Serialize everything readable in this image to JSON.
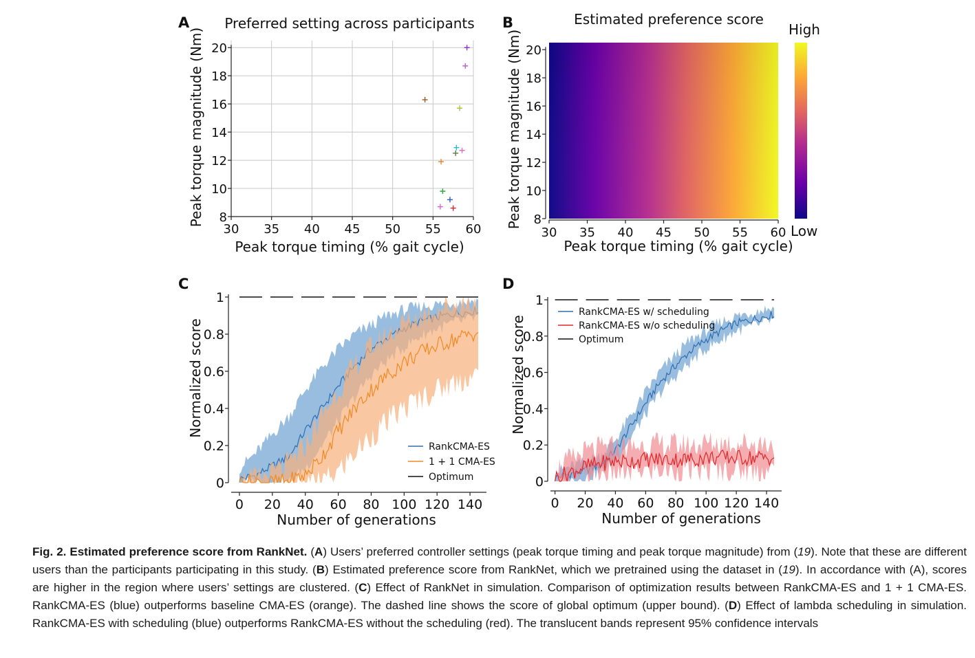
{
  "chart_data": [
    {
      "panel": "A",
      "type": "scatter",
      "title": "Preferred setting across participants",
      "xlabel": "Peak torque timing (% gait cycle)",
      "ylabel": "Peak torque magnitude (Nm)",
      "xlim": [
        30,
        60
      ],
      "ylim": [
        8,
        20.5
      ],
      "xticks": [
        30,
        35,
        40,
        45,
        50,
        55,
        60
      ],
      "yticks": [
        8,
        10,
        12,
        14,
        16,
        18,
        20
      ],
      "grid": true,
      "points": [
        {
          "x": 59.2,
          "y": 20.0,
          "color": "#9b2fc9"
        },
        {
          "x": 59.0,
          "y": 18.7,
          "color": "#c060d0"
        },
        {
          "x": 54.0,
          "y": 16.3,
          "color": "#9a5a2a"
        },
        {
          "x": 58.3,
          "y": 15.7,
          "color": "#a8c23a"
        },
        {
          "x": 57.9,
          "y": 12.9,
          "color": "#2ab8d8"
        },
        {
          "x": 58.6,
          "y": 12.7,
          "color": "#e070c0"
        },
        {
          "x": 57.8,
          "y": 12.5,
          "color": "#5a7a3a"
        },
        {
          "x": 56.0,
          "y": 11.9,
          "color": "#e08a3a"
        },
        {
          "x": 56.2,
          "y": 9.8,
          "color": "#2aa83a"
        },
        {
          "x": 57.1,
          "y": 9.2,
          "color": "#2a5ac8"
        },
        {
          "x": 55.9,
          "y": 8.7,
          "color": "#e060d8"
        },
        {
          "x": 57.5,
          "y": 8.6,
          "color": "#d82a2a"
        }
      ]
    },
    {
      "panel": "B",
      "type": "heatmap",
      "title": "Estimated preference score",
      "xlabel": "Peak torque timing (% gait cycle)",
      "ylabel": "Peak torque magnitude (Nm)",
      "xlim": [
        30,
        60
      ],
      "ylim": [
        8,
        20.5
      ],
      "xticks": [
        30,
        35,
        40,
        45,
        50,
        55,
        60
      ],
      "yticks": [
        8,
        10,
        12,
        14,
        16,
        18,
        20
      ],
      "colorbar_high": "High",
      "colorbar_low": "Low",
      "colormap": [
        "#0d0887",
        "#6a00a8",
        "#b12a90",
        "#e16462",
        "#fca636",
        "#f0f921"
      ]
    },
    {
      "panel": "C",
      "type": "line",
      "xlabel": "Number of generations",
      "ylabel": "Normalized score",
      "xlim": [
        -5,
        150
      ],
      "ylim": [
        0,
        1.0
      ],
      "xticks": [
        0,
        20,
        40,
        60,
        80,
        100,
        120,
        140
      ],
      "yticks": [
        0.0,
        0.2,
        0.4,
        0.6,
        0.8,
        1.0
      ],
      "legend": "lower-right",
      "series": [
        {
          "name": "RankCMA-ES",
          "color": "#2f6eb0",
          "band_color": "#6ea1d2",
          "x": [
            0,
            10,
            20,
            30,
            40,
            50,
            60,
            70,
            80,
            90,
            100,
            110,
            120,
            130,
            140,
            145
          ],
          "mean": [
            0.02,
            0.04,
            0.09,
            0.14,
            0.28,
            0.4,
            0.52,
            0.63,
            0.72,
            0.78,
            0.83,
            0.87,
            0.89,
            0.91,
            0.92,
            0.93
          ],
          "lower": [
            0.0,
            0.0,
            0.0,
            0.0,
            0.08,
            0.2,
            0.33,
            0.46,
            0.58,
            0.66,
            0.73,
            0.79,
            0.83,
            0.86,
            0.88,
            0.89
          ],
          "upper": [
            0.08,
            0.16,
            0.26,
            0.36,
            0.5,
            0.62,
            0.72,
            0.8,
            0.85,
            0.9,
            0.93,
            0.95,
            0.96,
            0.97,
            0.98,
            0.98
          ]
        },
        {
          "name": "1 + 1 CMA-ES",
          "color": "#f08a24",
          "band_color": "#f6b07a",
          "x": [
            0,
            10,
            20,
            30,
            40,
            50,
            60,
            70,
            80,
            90,
            100,
            110,
            120,
            130,
            140,
            145
          ],
          "mean": [
            0.0,
            0.0,
            0.0,
            0.01,
            0.04,
            0.14,
            0.28,
            0.4,
            0.5,
            0.58,
            0.65,
            0.7,
            0.74,
            0.77,
            0.8,
            0.81
          ],
          "lower": [
            0.0,
            0.0,
            0.0,
            0.0,
            0.0,
            0.0,
            0.06,
            0.16,
            0.25,
            0.33,
            0.4,
            0.46,
            0.5,
            0.54,
            0.57,
            0.58
          ],
          "upper": [
            0.01,
            0.02,
            0.05,
            0.1,
            0.2,
            0.36,
            0.5,
            0.63,
            0.73,
            0.8,
            0.86,
            0.9,
            0.94,
            0.96,
            0.97,
            0.98
          ]
        },
        {
          "name": "Optimum",
          "color": "#111111",
          "dashed": true,
          "value": 1.0
        }
      ]
    },
    {
      "panel": "D",
      "type": "line",
      "xlabel": "Number of generations",
      "ylabel": "Normalized score",
      "xlim": [
        -3,
        150
      ],
      "ylim": [
        0,
        1.0
      ],
      "xticks": [
        0,
        20,
        40,
        60,
        80,
        100,
        120,
        140
      ],
      "yticks": [
        0.0,
        0.2,
        0.4,
        0.6,
        0.8,
        1.0
      ],
      "legend": "top-left",
      "series": [
        {
          "name": "RankCMA-ES w/ scheduling",
          "color": "#2f6eb0",
          "band_color": "#6ea1d2",
          "x": [
            0,
            10,
            20,
            30,
            40,
            50,
            60,
            70,
            80,
            90,
            100,
            110,
            120,
            130,
            140,
            145
          ],
          "mean": [
            0.02,
            0.04,
            0.06,
            0.09,
            0.17,
            0.3,
            0.43,
            0.55,
            0.64,
            0.72,
            0.78,
            0.83,
            0.87,
            0.89,
            0.91,
            0.92
          ],
          "lower": [
            0.0,
            0.0,
            0.02,
            0.05,
            0.12,
            0.24,
            0.37,
            0.49,
            0.58,
            0.66,
            0.73,
            0.78,
            0.83,
            0.85,
            0.88,
            0.89
          ],
          "upper": [
            0.05,
            0.08,
            0.11,
            0.14,
            0.23,
            0.36,
            0.49,
            0.61,
            0.7,
            0.78,
            0.83,
            0.88,
            0.91,
            0.93,
            0.95,
            0.95
          ]
        },
        {
          "name": "RankCMA-ES w/o scheduling",
          "color": "#e0282c",
          "band_color": "#f08a8e",
          "x": [
            0,
            10,
            20,
            30,
            40,
            50,
            60,
            70,
            80,
            90,
            100,
            110,
            120,
            130,
            140,
            145
          ],
          "mean": [
            0.02,
            0.05,
            0.08,
            0.1,
            0.11,
            0.11,
            0.12,
            0.12,
            0.12,
            0.12,
            0.13,
            0.13,
            0.13,
            0.13,
            0.13,
            0.13
          ],
          "lower": [
            0.0,
            0.0,
            0.02,
            0.04,
            0.05,
            0.05,
            0.06,
            0.06,
            0.06,
            0.06,
            0.06,
            0.06,
            0.06,
            0.06,
            0.06,
            0.06
          ],
          "upper": [
            0.06,
            0.12,
            0.16,
            0.18,
            0.19,
            0.19,
            0.2,
            0.2,
            0.2,
            0.2,
            0.21,
            0.21,
            0.21,
            0.21,
            0.21,
            0.21
          ]
        },
        {
          "name": "Optimum",
          "color": "#111111",
          "dashed": true,
          "value": 1.0
        }
      ]
    }
  ],
  "panel_labels": [
    "A",
    "B",
    "C",
    "D"
  ],
  "caption": {
    "bold_lead": "Fig. 2. Estimated preference score from RankNet.",
    "segments": [
      {
        "t": " (",
        "s": "n"
      },
      {
        "t": "A",
        "s": "b"
      },
      {
        "t": ") Users’ preferred controller settings (peak torque timing and peak torque magnitude) from (",
        "s": "n"
      },
      {
        "t": "19",
        "s": "i"
      },
      {
        "t": "). Note that these are different users than the participants participating in this study. (",
        "s": "n"
      },
      {
        "t": "B",
        "s": "b"
      },
      {
        "t": ") Estimated preference score from RankNet, which we pretrained using the dataset in (",
        "s": "n"
      },
      {
        "t": "19",
        "s": "i"
      },
      {
        "t": "). In accordance with (A), scores are higher in the region where users’ settings are clustered. (",
        "s": "n"
      },
      {
        "t": "C",
        "s": "b"
      },
      {
        "t": ") Effect of RankNet in simulation. Comparison of optimization results between RankCMA-ES and 1 + 1 CMA-ES. RankCMA-ES (blue) outperforms baseline CMA-ES (orange). The dashed line shows the score of global optimum (upper bound). (",
        "s": "n"
      },
      {
        "t": "D",
        "s": "b"
      },
      {
        "t": ") Effect of lambda scheduling in simulation. RankCMA-ES with scheduling (blue) outperforms RankCMA-ES without the scheduling (red). The translucent bands represent 95% confidence intervals",
        "s": "n"
      }
    ]
  }
}
